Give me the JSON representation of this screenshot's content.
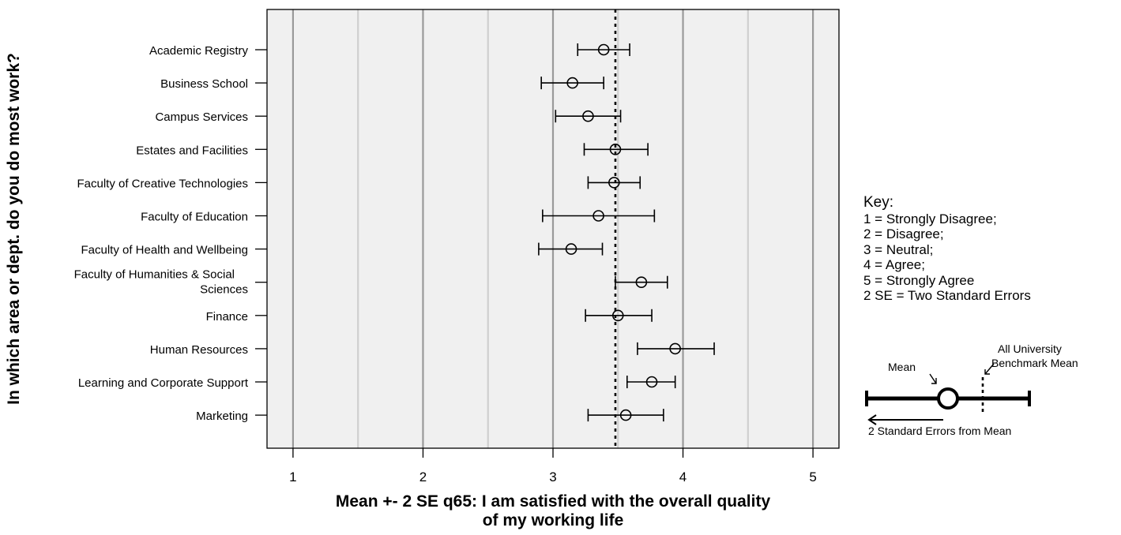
{
  "chart_data": {
    "type": "errorbar",
    "ylabel": "In which area or dept. do you do most work?",
    "xlabel_lines": [
      "Mean +- 2 SE q65: I am satisfied with the overall quality",
      "of my working life"
    ],
    "xlim": [
      0.8,
      5.2
    ],
    "xticks": [
      "1",
      "2",
      "3",
      "4",
      "5"
    ],
    "benchmark_mean": 3.48,
    "categories": [
      {
        "label_lines": [
          "Academic Registry"
        ],
        "mean": 3.39,
        "low": 3.19,
        "high": 3.59
      },
      {
        "label_lines": [
          "Business School"
        ],
        "mean": 3.15,
        "low": 2.91,
        "high": 3.39
      },
      {
        "label_lines": [
          "Campus Services"
        ],
        "mean": 3.27,
        "low": 3.02,
        "high": 3.52
      },
      {
        "label_lines": [
          "Estates and Facilities"
        ],
        "mean": 3.48,
        "low": 3.24,
        "high": 3.73
      },
      {
        "label_lines": [
          "Faculty of Creative Technologies"
        ],
        "mean": 3.47,
        "low": 3.27,
        "high": 3.67
      },
      {
        "label_lines": [
          "Faculty of Education"
        ],
        "mean": 3.35,
        "low": 2.92,
        "high": 3.78
      },
      {
        "label_lines": [
          "Faculty of Health and Wellbeing"
        ],
        "mean": 3.14,
        "low": 2.89,
        "high": 3.38
      },
      {
        "label_lines": [
          "Faculty of Humanities & Social",
          "Sciences"
        ],
        "mean": 3.68,
        "low": 3.48,
        "high": 3.88
      },
      {
        "label_lines": [
          "Finance"
        ],
        "mean": 3.5,
        "low": 3.25,
        "high": 3.76
      },
      {
        "label_lines": [
          "Human Resources"
        ],
        "mean": 3.94,
        "low": 3.65,
        "high": 4.24
      },
      {
        "label_lines": [
          "Learning and Corporate Support"
        ],
        "mean": 3.76,
        "low": 3.57,
        "high": 3.94
      },
      {
        "label_lines": [
          "Marketing"
        ],
        "mean": 3.56,
        "low": 3.27,
        "high": 3.85
      }
    ]
  },
  "key": {
    "title": "Key:",
    "items": [
      "1 = Strongly Disagree;",
      "2 = Disagree;",
      "3 = Neutral;",
      "4 = Agree;",
      "5 = Strongly Agree",
      "2 SE = Two Standard Errors"
    ],
    "diagram": {
      "mean_label": "Mean",
      "benchmark_label_lines": [
        "All University",
        "Benchmark Mean"
      ],
      "se_label": "2 Standard Errors from Mean"
    }
  }
}
